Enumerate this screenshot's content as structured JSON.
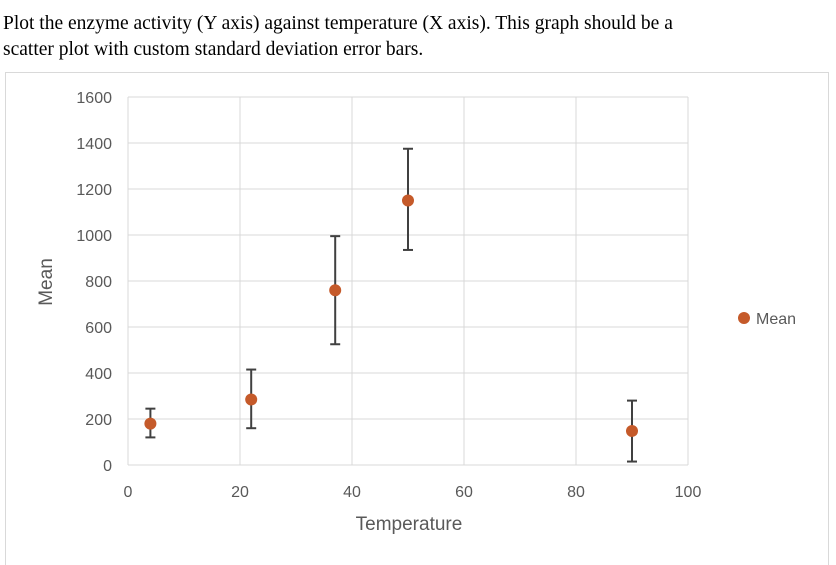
{
  "question": {
    "line1": "Plot the enzyme activity (Y axis) against temperature (X axis). This graph should be a",
    "line2": "scatter plot with custom standard deviation error bars."
  },
  "chart_data": {
    "type": "scatter",
    "title": "",
    "xlabel": "Temperature",
    "ylabel": "Mean",
    "xlim": [
      0,
      100
    ],
    "ylim": [
      0,
      1600
    ],
    "xticks": [
      0,
      20,
      40,
      60,
      80,
      100
    ],
    "yticks": [
      0,
      200,
      400,
      600,
      800,
      1000,
      1200,
      1400,
      1600
    ],
    "grid": true,
    "legend_position": "right",
    "series": [
      {
        "name": "Mean",
        "color": "#c55a2a",
        "points": [
          {
            "x": 4,
            "y": 180,
            "err_low": 120,
            "err_high": 245
          },
          {
            "x": 22,
            "y": 285,
            "err_low": 160,
            "err_high": 415
          },
          {
            "x": 37,
            "y": 760,
            "err_low": 525,
            "err_high": 995
          },
          {
            "x": 50,
            "y": 1150,
            "err_low": 935,
            "err_high": 1375
          },
          {
            "x": 90,
            "y": 148,
            "err_low": 15,
            "err_high": 280
          }
        ]
      }
    ],
    "colors": {
      "grid": "#d9d9d9",
      "error_bar": "#404040",
      "text": "#595959"
    }
  }
}
